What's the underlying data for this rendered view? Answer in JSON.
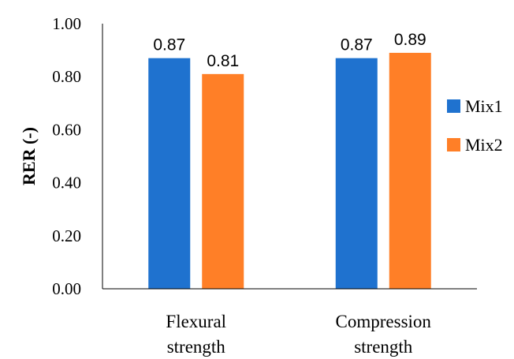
{
  "chart_data": {
    "type": "bar",
    "title": "",
    "xlabel": "",
    "ylabel": "RER (-)",
    "ylim": [
      0,
      1
    ],
    "yticks": [
      "0.00",
      "0.20",
      "0.40",
      "0.60",
      "0.80",
      "1.00"
    ],
    "categories": [
      [
        "Flexural",
        "strength"
      ],
      [
        "Compression",
        "strength"
      ]
    ],
    "series": [
      {
        "name": "Mix1",
        "color": "#1f72cf",
        "values": [
          0.87,
          0.87
        ],
        "labels": [
          "0.87",
          "0.87"
        ]
      },
      {
        "name": "Mix2",
        "color": "#ff7f27",
        "values": [
          0.81,
          0.89
        ],
        "labels": [
          "0.81",
          "0.89"
        ]
      }
    ],
    "legend_position": "right",
    "grid": false
  }
}
